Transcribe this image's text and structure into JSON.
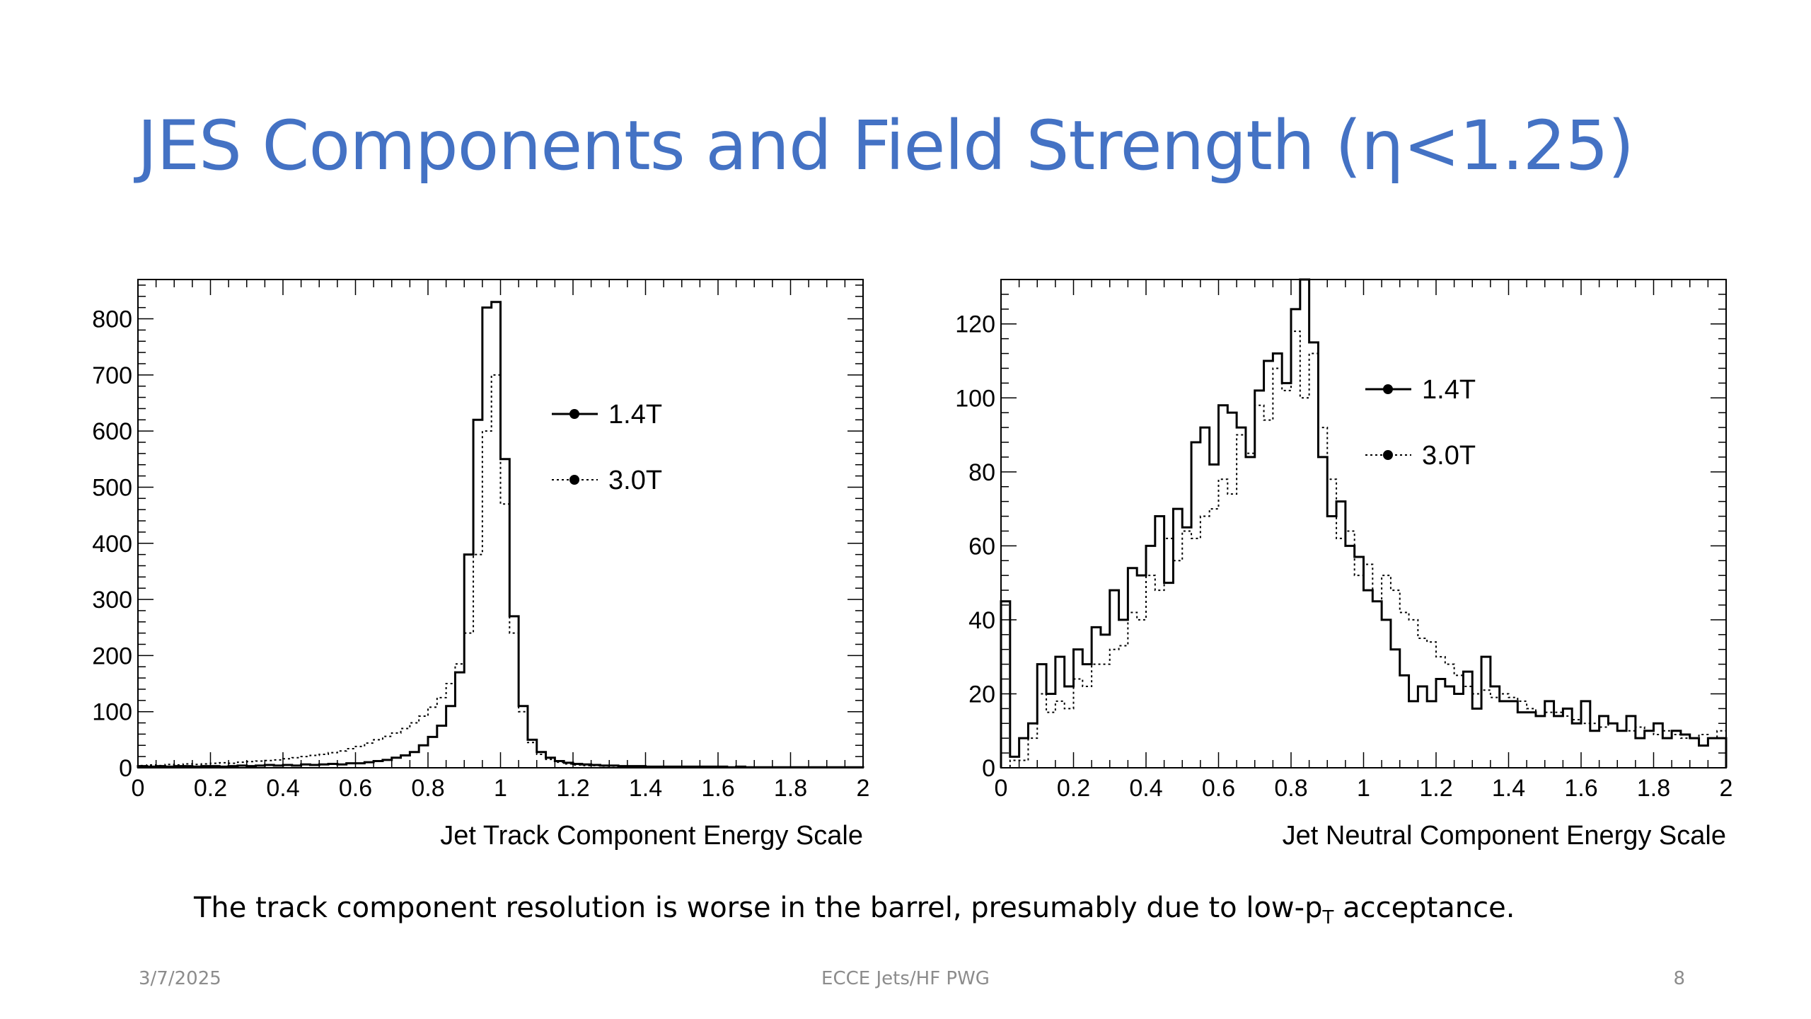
{
  "slide": {
    "title": "JES Components and Field Strength (η<1.25)",
    "caption_main": "The track component resolution is worse in the barrel, presumably due to low-p",
    "caption_sub": "T",
    "caption_end": " acceptance.",
    "footer_date": "3/7/2025",
    "footer_center": "ECCE Jets/HF PWG",
    "footer_page": "8"
  },
  "chart_data": [
    {
      "type": "histogram",
      "xlabel": "Jet Track Component Energy Scale",
      "ylabel": "",
      "xlim": [
        0,
        2
      ],
      "ylim": [
        0,
        870
      ],
      "xticks": [
        "0",
        "0.2",
        "0.4",
        "0.6",
        "0.8",
        "1",
        "1.2",
        "1.4",
        "1.6",
        "1.8",
        "2"
      ],
      "yticks": [
        "0",
        "100",
        "200",
        "300",
        "400",
        "500",
        "600",
        "700",
        "800"
      ],
      "ytick_values": [
        0,
        100,
        200,
        300,
        400,
        500,
        600,
        700,
        800
      ],
      "grid": false,
      "legend_position": "upper-right",
      "bin_edges_range": [
        0,
        2
      ],
      "series": [
        {
          "name": "1.4T",
          "style": "solid",
          "values": [
            3,
            2,
            3,
            2,
            3,
            3,
            2,
            3,
            3,
            2,
            3,
            4,
            3,
            4,
            5,
            4,
            5,
            4,
            6,
            5,
            6,
            7,
            6,
            8,
            8,
            10,
            12,
            14,
            18,
            22,
            28,
            40,
            55,
            75,
            110,
            170,
            380,
            620,
            820,
            830,
            550,
            270,
            110,
            50,
            28,
            18,
            12,
            9,
            7,
            6,
            5,
            4,
            4,
            3,
            3,
            3,
            2,
            2,
            2,
            2,
            2,
            2,
            2,
            2,
            2,
            1,
            2,
            1,
            1,
            1,
            1,
            1,
            1,
            1,
            1,
            1,
            1,
            1,
            1,
            1
          ]
        },
        {
          "name": "3.0T",
          "style": "dotted",
          "values": [
            4,
            5,
            4,
            6,
            5,
            7,
            6,
            7,
            8,
            9,
            8,
            10,
            11,
            12,
            13,
            14,
            16,
            18,
            20,
            22,
            24,
            27,
            30,
            34,
            38,
            44,
            50,
            56,
            62,
            70,
            80,
            92,
            108,
            125,
            150,
            185,
            240,
            380,
            600,
            700,
            470,
            240,
            100,
            45,
            24,
            15,
            10,
            7,
            5,
            4,
            4,
            3,
            3,
            3,
            2,
            2,
            2,
            2,
            2,
            2,
            2,
            1,
            1,
            1,
            1,
            1,
            1,
            1,
            1,
            1,
            1,
            1,
            1,
            1,
            1,
            1,
            1,
            1,
            1,
            1
          ]
        }
      ]
    },
    {
      "type": "histogram",
      "xlabel": "Jet Neutral Component Energy Scale",
      "ylabel": "",
      "xlim": [
        0,
        2
      ],
      "ylim": [
        0,
        132
      ],
      "xticks": [
        "0",
        "0.2",
        "0.4",
        "0.6",
        "0.8",
        "1",
        "1.2",
        "1.4",
        "1.6",
        "1.8",
        "2"
      ],
      "yticks": [
        "0",
        "20",
        "40",
        "60",
        "80",
        "100",
        "120"
      ],
      "ytick_values": [
        0,
        20,
        40,
        60,
        80,
        100,
        120
      ],
      "grid": false,
      "legend_position": "upper-right",
      "bin_edges_range": [
        0,
        2
      ],
      "series": [
        {
          "name": "1.4T",
          "style": "solid",
          "values": [
            45,
            3,
            8,
            12,
            28,
            20,
            30,
            22,
            32,
            28,
            38,
            36,
            48,
            40,
            54,
            52,
            60,
            68,
            50,
            70,
            65,
            88,
            92,
            82,
            98,
            96,
            92,
            84,
            102,
            110,
            112,
            104,
            124,
            132,
            115,
            84,
            68,
            72,
            60,
            57,
            48,
            45,
            40,
            32,
            25,
            18,
            22,
            18,
            24,
            22,
            20,
            26,
            16,
            30,
            22,
            18,
            18,
            15,
            15,
            14,
            18,
            14,
            16,
            12,
            18,
            10,
            14,
            12,
            10,
            14,
            8,
            10,
            12,
            8,
            10,
            9,
            8,
            6,
            8,
            8
          ]
        },
        {
          "name": "3.0T",
          "style": "dotted",
          "values": [
            0,
            2,
            2,
            8,
            20,
            15,
            18,
            16,
            24,
            22,
            28,
            28,
            32,
            33,
            42,
            40,
            52,
            48,
            62,
            56,
            64,
            62,
            68,
            70,
            78,
            74,
            90,
            85,
            98,
            94,
            108,
            102,
            118,
            100,
            112,
            92,
            78,
            62,
            64,
            52,
            55,
            45,
            52,
            48,
            42,
            40,
            35,
            34,
            30,
            28,
            25,
            22,
            20,
            21,
            19,
            20,
            19,
            18,
            16,
            14,
            15,
            15,
            14,
            13,
            12,
            12,
            11,
            12,
            10,
            10,
            11,
            10,
            9,
            10,
            9,
            8,
            8,
            9,
            8,
            10
          ]
        }
      ]
    }
  ]
}
